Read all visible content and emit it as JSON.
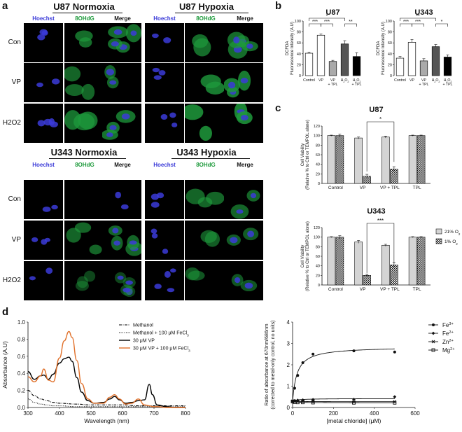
{
  "panels": {
    "a": "a",
    "b": "b",
    "c": "c",
    "d": "d"
  },
  "panel_a": {
    "groups": [
      {
        "title": "U87 Normoxia"
      },
      {
        "title": "U87 Hypoxia"
      },
      {
        "title": "U343 Normoxia"
      },
      {
        "title": "U343 Hypoxia"
      }
    ],
    "columns": [
      "Hoechst",
      "8OHdG",
      "Merge"
    ],
    "top_rows": [
      "Con",
      "VP",
      "H2O2"
    ],
    "bottom_rows": [
      "Con",
      "VP",
      "H2O2"
    ],
    "colors": {
      "hoechst": "#3b3bd8",
      "ohdg": "#1e9a3c"
    }
  },
  "chart_data": [
    {
      "type": "bar",
      "title": "U87",
      "ylabel": "DCFDA Fluorescence Intensity (A.U)",
      "ylim": [
        0,
        100
      ],
      "yticks": [
        0,
        20,
        40,
        60,
        80,
        100
      ],
      "categories": [
        "Control",
        "VP",
        "VP + TPL",
        "H2O2",
        "H2O2 + TPL"
      ],
      "values": [
        41,
        74,
        26,
        58,
        35
      ],
      "errors": [
        2,
        2,
        2,
        6,
        7
      ],
      "fills": [
        "#ffffff",
        "#ffffff",
        "#aaaaaa",
        "#555555",
        "#000000"
      ],
      "significance": [
        "*",
        "***",
        "***",
        "**"
      ]
    },
    {
      "type": "bar",
      "title": "U343",
      "ylabel": "DCFDA Fluorescence Intensity (A.U)",
      "ylim": [
        0,
        100
      ],
      "yticks": [
        0,
        20,
        40,
        60,
        80,
        100
      ],
      "categories": [
        "Control",
        "VP",
        "VP + TPL",
        "H2O2",
        "H2O2 + TPL"
      ],
      "values": [
        32,
        61,
        27,
        53,
        34
      ],
      "errors": [
        3,
        5,
        4,
        4,
        4
      ],
      "fills": [
        "#ffffff",
        "#ffffff",
        "#aaaaaa",
        "#555555",
        "#000000"
      ],
      "significance": [
        "**",
        "***",
        "***",
        "*"
      ]
    },
    {
      "type": "bar",
      "title": "U87",
      "ylabel": "Cell Viability (Relative % to Ctrl or TEMPOL alone)",
      "ylim": [
        0,
        120
      ],
      "yticks": [
        0,
        20,
        40,
        60,
        80,
        100,
        120
      ],
      "categories": [
        "Control",
        "VP",
        "VP + TPL",
        "TPL"
      ],
      "series": [
        {
          "name": "21% O2",
          "values": [
            100,
            95,
            97,
            100
          ],
          "errors": [
            1,
            2,
            2,
            1
          ]
        },
        {
          "name": "1% O2",
          "values": [
            100,
            15,
            30,
            100
          ],
          "errors": [
            3,
            4,
            5,
            1
          ]
        }
      ],
      "significance": [
        "*"
      ]
    },
    {
      "type": "bar",
      "title": "U343",
      "ylabel": "Cell Viability (Relative % to Ctrl or TEMPOL alone)",
      "ylim": [
        0,
        120
      ],
      "yticks": [
        0,
        20,
        40,
        60,
        80,
        100,
        120
      ],
      "categories": [
        "Control",
        "VP",
        "VP + TPL",
        "TPL"
      ],
      "series": [
        {
          "name": "21% O2",
          "values": [
            100,
            90,
            83,
            100
          ],
          "errors": [
            1,
            3,
            2,
            1
          ]
        },
        {
          "name": "1% O2",
          "values": [
            100,
            20,
            42,
            100
          ],
          "errors": [
            3,
            3,
            5,
            1
          ]
        }
      ],
      "significance": [
        "***"
      ],
      "legend": [
        "21% O2",
        "1% O2"
      ]
    },
    {
      "type": "line",
      "xlabel": "Wavelength (nm)",
      "ylabel": "Absorbance (A.U)",
      "xlim": [
        300,
        800
      ],
      "ylim": [
        0,
        1.0
      ],
      "xticks": [
        300,
        400,
        500,
        600,
        700,
        800
      ],
      "yticks": [
        0.0,
        0.2,
        0.4,
        0.6,
        0.8,
        1.0
      ],
      "legend_position": "top-right",
      "series": [
        {
          "name": "Methanol",
          "style": "dashdot",
          "color": "#000000",
          "x": [
            300,
            320,
            340,
            360,
            380,
            400,
            450,
            500,
            550,
            600,
            650,
            700,
            750,
            800
          ],
          "y": [
            0.2,
            0.14,
            0.1,
            0.08,
            0.06,
            0.05,
            0.04,
            0.03,
            0.03,
            0.03,
            0.02,
            0.02,
            0.02,
            0.02
          ]
        },
        {
          "name": "Methanol + 100 μM FeCl3",
          "style": "dotted",
          "color": "#000000",
          "x": [
            300,
            320,
            340,
            360,
            380,
            400,
            450,
            500,
            550,
            600,
            650,
            700,
            750,
            800
          ],
          "y": [
            0.1,
            0.06,
            0.04,
            0.03,
            0.02,
            0.02,
            0.01,
            0.01,
            0.01,
            0.01,
            0.01,
            0.01,
            0.01,
            0.01
          ]
        },
        {
          "name": "30 μM VP",
          "style": "solid",
          "color": "#000000",
          "x": [
            300,
            320,
            340,
            350,
            365,
            380,
            400,
            415,
            430,
            440,
            455,
            470,
            490,
            510,
            540,
            560,
            575,
            590,
            610,
            630,
            650,
            670,
            685,
            695,
            710,
            740,
            770,
            800
          ],
          "y": [
            0.42,
            0.33,
            0.37,
            0.38,
            0.33,
            0.39,
            0.52,
            0.57,
            0.59,
            0.54,
            0.35,
            0.18,
            0.08,
            0.05,
            0.06,
            0.1,
            0.13,
            0.09,
            0.05,
            0.06,
            0.08,
            0.09,
            0.27,
            0.15,
            0.03,
            0.01,
            0.0,
            0.0
          ]
        },
        {
          "name": "30 μM VP + 100 μM FeCl3",
          "style": "solid",
          "color": "#e0702a",
          "x": [
            300,
            320,
            340,
            350,
            365,
            380,
            400,
            415,
            430,
            440,
            455,
            470,
            490,
            510,
            540,
            560,
            575,
            590,
            610,
            630,
            650,
            670,
            685,
            695,
            710,
            740,
            770,
            800
          ],
          "y": [
            0.36,
            0.3,
            0.37,
            0.45,
            0.32,
            0.3,
            0.58,
            0.78,
            0.89,
            0.82,
            0.55,
            0.28,
            0.1,
            0.05,
            0.05,
            0.12,
            0.15,
            0.1,
            0.04,
            0.05,
            0.1,
            0.03,
            0.02,
            0.01,
            0.01,
            0.0,
            0.0,
            0.0
          ]
        }
      ]
    },
    {
      "type": "scatter",
      "xlabel": "[metal chloride] (μM)",
      "ylabel": "Ratio of absorbance at 670nm/686nm (corrected to metal-only control, no units)",
      "xlim": [
        0,
        600
      ],
      "ylim": [
        0,
        4
      ],
      "xticks": [
        0,
        200,
        400,
        600
      ],
      "yticks": [
        0,
        1,
        2,
        3,
        4
      ],
      "legend_position": "right",
      "series": [
        {
          "name": "Fe3+",
          "marker": "circle",
          "x": [
            0,
            10,
            25,
            50,
            100,
            300,
            500
          ],
          "y": [
            0.3,
            0.9,
            1.5,
            2.1,
            2.5,
            2.65,
            2.6
          ]
        },
        {
          "name": "Fe2+",
          "marker": "diamond",
          "x": [
            0,
            10,
            25,
            50,
            100,
            300,
            500
          ],
          "y": [
            0.3,
            0.32,
            0.34,
            0.35,
            0.37,
            0.38,
            0.5
          ]
        },
        {
          "name": "Zn2+",
          "marker": "x",
          "x": [
            0,
            10,
            25,
            50,
            100,
            300,
            500
          ],
          "y": [
            0.3,
            0.3,
            0.29,
            0.28,
            0.27,
            0.26,
            0.27
          ]
        },
        {
          "name": "Mg2+",
          "marker": "square",
          "x": [
            0,
            10,
            25,
            50,
            100,
            300,
            500
          ],
          "y": [
            0.28,
            0.25,
            0.24,
            0.24,
            0.23,
            0.22,
            0.22
          ]
        }
      ]
    }
  ]
}
